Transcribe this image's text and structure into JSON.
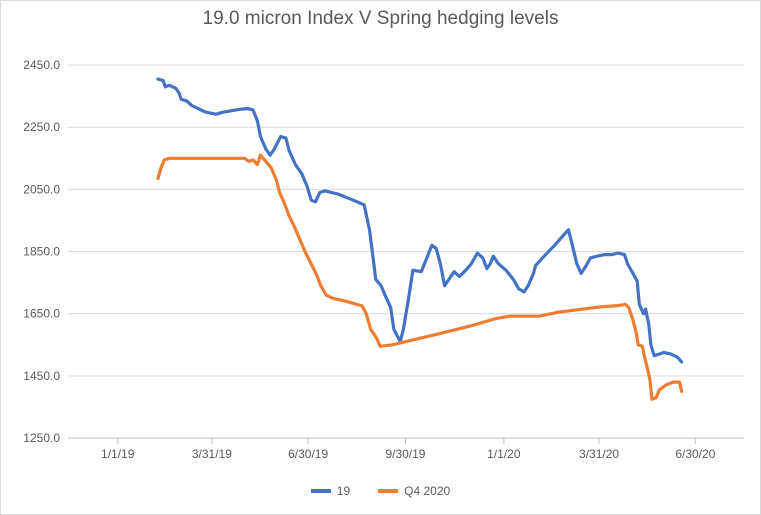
{
  "chart_data": {
    "type": "line",
    "title": "19.0 micron Index V Spring hedging  levels",
    "xlabel": "",
    "ylabel": "",
    "ylim": [
      1250,
      2550
    ],
    "yticks": [
      "1250.0",
      "1450.0",
      "1650.0",
      "1850.0",
      "2050.0",
      "2250.0",
      "2450.0"
    ],
    "ytick_values": [
      1250,
      1450,
      1650,
      1850,
      2050,
      2250,
      2450
    ],
    "xlim": [
      "2018-11-15",
      "2020-08-15"
    ],
    "xticks": [
      "1/1/19",
      "3/31/19",
      "6/30/19",
      "9/30/19",
      "1/1/20",
      "3/31/20",
      "6/30/20"
    ],
    "xtick_dates": [
      "2019-01-01",
      "2019-03-31",
      "2019-06-30",
      "2019-09-30",
      "2020-01-01",
      "2020-03-31",
      "2020-06-30"
    ],
    "grid": "horizontal",
    "legend_position": "bottom",
    "series": [
      {
        "name": "19",
        "color": "#4472c4",
        "points": [
          [
            "2019-02-08",
            2405
          ],
          [
            "2019-02-13",
            2400
          ],
          [
            "2019-02-15",
            2380
          ],
          [
            "2019-02-19",
            2385
          ],
          [
            "2019-02-25",
            2375
          ],
          [
            "2019-02-28",
            2360
          ],
          [
            "2019-03-02",
            2340
          ],
          [
            "2019-03-07",
            2335
          ],
          [
            "2019-03-12",
            2320
          ],
          [
            "2019-03-18",
            2310
          ],
          [
            "2019-03-24",
            2300
          ],
          [
            "2019-03-30",
            2295
          ],
          [
            "2019-04-04",
            2292
          ],
          [
            "2019-04-10",
            2298
          ],
          [
            "2019-04-18",
            2303
          ],
          [
            "2019-04-27",
            2308
          ],
          [
            "2019-05-04",
            2310
          ],
          [
            "2019-05-09",
            2305
          ],
          [
            "2019-05-13",
            2270
          ],
          [
            "2019-05-16",
            2220
          ],
          [
            "2019-05-21",
            2180
          ],
          [
            "2019-05-25",
            2160
          ],
          [
            "2019-05-29",
            2180
          ],
          [
            "2019-06-04",
            2220
          ],
          [
            "2019-06-09",
            2215
          ],
          [
            "2019-06-12",
            2175
          ],
          [
            "2019-06-18",
            2130
          ],
          [
            "2019-06-24",
            2100
          ],
          [
            "2019-06-29",
            2060
          ],
          [
            "2019-07-03",
            2015
          ],
          [
            "2019-07-07",
            2010
          ],
          [
            "2019-07-11",
            2040
          ],
          [
            "2019-07-16",
            2045
          ],
          [
            "2019-07-28",
            2035
          ],
          [
            "2019-08-12",
            2015
          ],
          [
            "2019-08-22",
            2000
          ],
          [
            "2019-08-27",
            1920
          ],
          [
            "2019-09-02",
            1760
          ],
          [
            "2019-09-07",
            1740
          ],
          [
            "2019-09-12",
            1700
          ],
          [
            "2019-09-16",
            1670
          ],
          [
            "2019-09-19",
            1600
          ],
          [
            "2019-09-25",
            1560
          ],
          [
            "2019-09-28",
            1600
          ],
          [
            "2019-10-03",
            1700
          ],
          [
            "2019-10-07",
            1790
          ],
          [
            "2019-10-15",
            1785
          ],
          [
            "2019-10-19",
            1820
          ],
          [
            "2019-10-25",
            1870
          ],
          [
            "2019-10-29",
            1860
          ],
          [
            "2019-11-02",
            1810
          ],
          [
            "2019-11-06",
            1740
          ],
          [
            "2019-11-10",
            1760
          ],
          [
            "2019-11-15",
            1785
          ],
          [
            "2019-11-20",
            1770
          ],
          [
            "2019-11-26",
            1790
          ],
          [
            "2019-12-01",
            1810
          ],
          [
            "2019-12-07",
            1845
          ],
          [
            "2019-12-12",
            1830
          ],
          [
            "2019-12-16",
            1795
          ],
          [
            "2019-12-19",
            1810
          ],
          [
            "2019-12-22",
            1835
          ],
          [
            "2019-12-27",
            1810
          ],
          [
            "2020-01-03",
            1790
          ],
          [
            "2020-01-10",
            1760
          ],
          [
            "2020-01-15",
            1730
          ],
          [
            "2020-01-20",
            1720
          ],
          [
            "2020-01-24",
            1740
          ],
          [
            "2020-01-29",
            1780
          ],
          [
            "2020-01-31",
            1805
          ],
          [
            "2020-02-08",
            1835
          ],
          [
            "2020-02-18",
            1870
          ],
          [
            "2020-02-27",
            1905
          ],
          [
            "2020-03-02",
            1920
          ],
          [
            "2020-03-05",
            1880
          ],
          [
            "2020-03-10",
            1810
          ],
          [
            "2020-03-14",
            1780
          ],
          [
            "2020-03-18",
            1800
          ],
          [
            "2020-03-23",
            1830
          ],
          [
            "2020-03-29",
            1835
          ],
          [
            "2020-04-05",
            1840
          ],
          [
            "2020-04-12",
            1840
          ],
          [
            "2020-04-18",
            1845
          ],
          [
            "2020-04-24",
            1840
          ],
          [
            "2020-04-27",
            1810
          ],
          [
            "2020-05-02",
            1780
          ],
          [
            "2020-05-06",
            1755
          ],
          [
            "2020-05-08",
            1680
          ],
          [
            "2020-05-12",
            1650
          ],
          [
            "2020-05-14",
            1665
          ],
          [
            "2020-05-17",
            1615
          ],
          [
            "2020-05-19",
            1550
          ],
          [
            "2020-05-22",
            1515
          ],
          [
            "2020-05-27",
            1520
          ],
          [
            "2020-05-31",
            1525
          ],
          [
            "2020-06-07",
            1520
          ],
          [
            "2020-06-13",
            1510
          ],
          [
            "2020-06-17",
            1495
          ]
        ]
      },
      {
        "name": "Q4 2020",
        "color": "#ed7d31",
        "points": [
          [
            "2019-02-08",
            2085
          ],
          [
            "2019-02-11",
            2120
          ],
          [
            "2019-02-14",
            2145
          ],
          [
            "2019-02-19",
            2150
          ],
          [
            "2019-03-31",
            2150
          ],
          [
            "2019-05-01",
            2150
          ],
          [
            "2019-05-05",
            2140
          ],
          [
            "2019-05-09",
            2145
          ],
          [
            "2019-05-13",
            2130
          ],
          [
            "2019-05-16",
            2160
          ],
          [
            "2019-05-21",
            2140
          ],
          [
            "2019-05-26",
            2120
          ],
          [
            "2019-05-31",
            2080
          ],
          [
            "2019-06-03",
            2040
          ],
          [
            "2019-06-07",
            2010
          ],
          [
            "2019-06-12",
            1965
          ],
          [
            "2019-06-17",
            1930
          ],
          [
            "2019-06-22",
            1890
          ],
          [
            "2019-06-27",
            1850
          ],
          [
            "2019-07-03",
            1810
          ],
          [
            "2019-07-08",
            1775
          ],
          [
            "2019-07-12",
            1740
          ],
          [
            "2019-07-17",
            1710
          ],
          [
            "2019-07-23",
            1700
          ],
          [
            "2019-08-05",
            1690
          ],
          [
            "2019-08-20",
            1675
          ],
          [
            "2019-08-24",
            1650
          ],
          [
            "2019-08-28",
            1600
          ],
          [
            "2019-09-03",
            1570
          ],
          [
            "2019-09-06",
            1545
          ],
          [
            "2019-09-18",
            1550
          ],
          [
            "2019-09-30",
            1560
          ],
          [
            "2019-10-31",
            1585
          ],
          [
            "2019-11-30",
            1610
          ],
          [
            "2019-12-25",
            1635
          ],
          [
            "2020-01-07",
            1642
          ],
          [
            "2020-02-03",
            1642
          ],
          [
            "2020-02-22",
            1655
          ],
          [
            "2020-03-11",
            1663
          ],
          [
            "2020-04-01",
            1672
          ],
          [
            "2020-04-18",
            1676
          ],
          [
            "2020-04-25",
            1680
          ],
          [
            "2020-04-28",
            1670
          ],
          [
            "2020-05-02",
            1630
          ],
          [
            "2020-05-05",
            1590
          ],
          [
            "2020-05-07",
            1550
          ],
          [
            "2020-05-11",
            1545
          ],
          [
            "2020-05-13",
            1510
          ],
          [
            "2020-05-16",
            1470
          ],
          [
            "2020-05-18",
            1440
          ],
          [
            "2020-05-20",
            1375
          ],
          [
            "2020-05-24",
            1380
          ],
          [
            "2020-05-27",
            1405
          ],
          [
            "2020-06-02",
            1420
          ],
          [
            "2020-06-09",
            1430
          ],
          [
            "2020-06-15",
            1430
          ],
          [
            "2020-06-17",
            1400
          ]
        ]
      }
    ]
  }
}
